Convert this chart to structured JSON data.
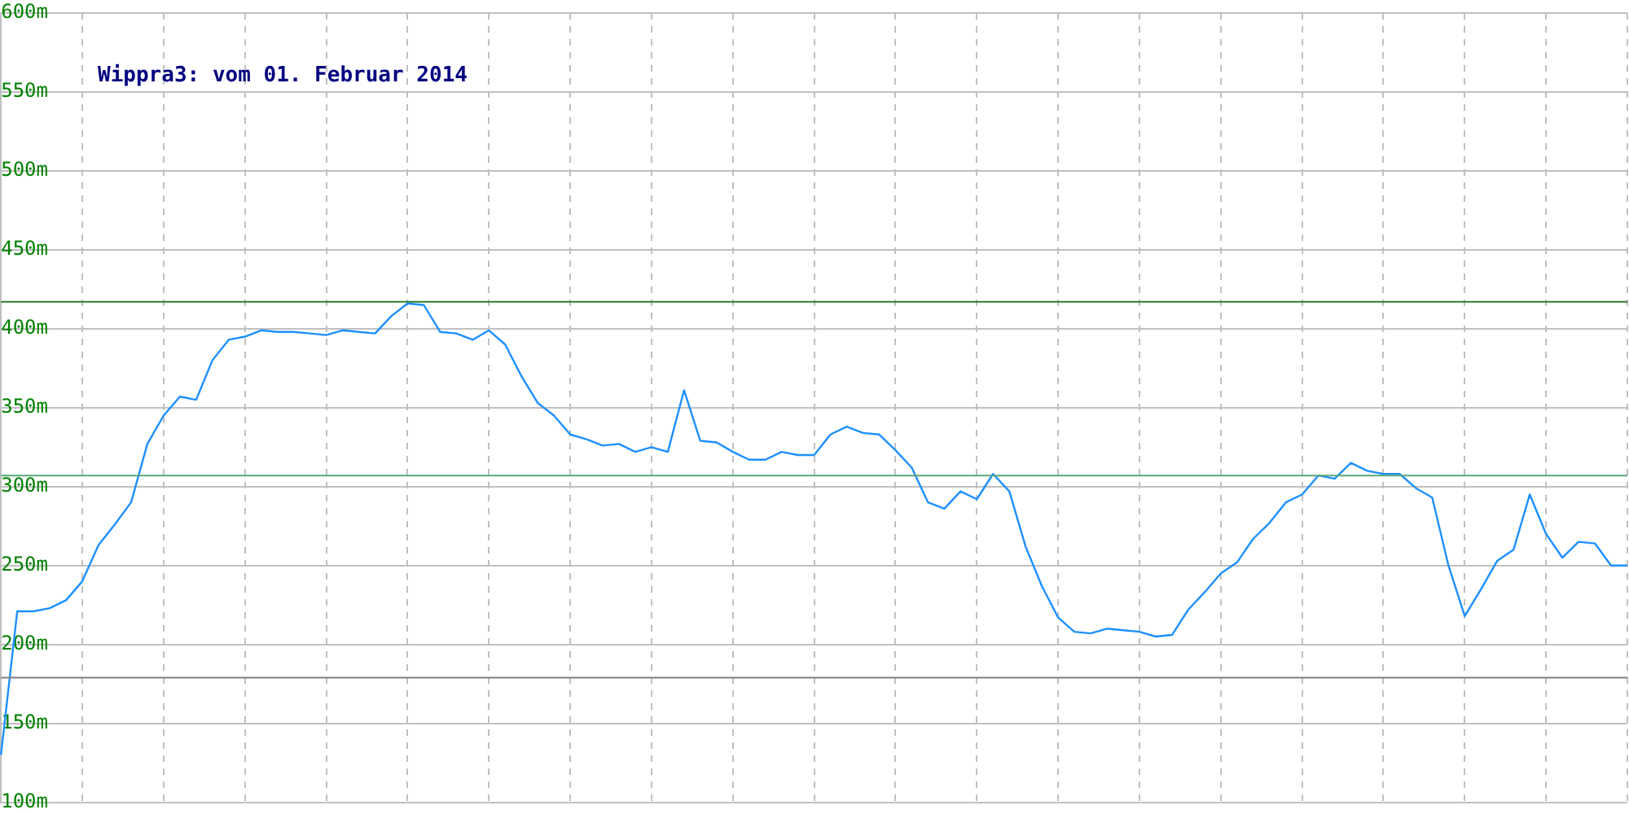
{
  "chart_data": {
    "type": "line",
    "title": "Wippra3: vom 01. Februar 2014",
    "categories": [
      null,
      null,
      null,
      null,
      null,
      null,
      null,
      null,
      null,
      null,
      null,
      null,
      null,
      null,
      null,
      null,
      null,
      null,
      null,
      null,
      null,
      null,
      null,
      null,
      null,
      null,
      null,
      null,
      null,
      null,
      null,
      null,
      null,
      null,
      null,
      null,
      null,
      null,
      null,
      null,
      null,
      null,
      null,
      null,
      null,
      null,
      null,
      null,
      null,
      null,
      null,
      null,
      null,
      null,
      null,
      null,
      null,
      null,
      null,
      null,
      null,
      null,
      null,
      null,
      null,
      null,
      null,
      null,
      null,
      null,
      null,
      null,
      null,
      null,
      null,
      null,
      null,
      null,
      null,
      null,
      null,
      null,
      null,
      null,
      null,
      null,
      null,
      null,
      null,
      null,
      null,
      null,
      null,
      null,
      null,
      null,
      null,
      null,
      null,
      null,
      null
    ],
    "series": [
      {
        "color": "#1e90ff",
        "values": [
          130,
          221,
          221,
          223,
          228,
          240,
          263,
          276,
          290,
          327,
          345,
          357,
          355,
          380,
          393,
          395,
          399,
          398,
          398,
          397,
          396,
          399,
          398,
          397,
          408,
          416,
          415,
          398,
          397,
          393,
          399,
          390,
          370,
          353,
          345,
          333,
          330,
          326,
          327,
          322,
          325,
          322,
          361,
          329,
          328,
          322,
          317,
          317,
          322,
          320,
          320,
          333,
          338,
          334,
          333,
          323,
          312,
          290,
          286,
          297,
          292,
          308,
          297,
          262,
          237,
          217,
          208,
          207,
          210,
          209,
          208,
          205,
          206,
          222,
          233,
          245,
          252,
          267,
          277,
          290,
          295,
          307,
          305,
          315,
          310,
          308,
          308,
          299,
          293,
          250,
          218,
          235,
          253,
          260,
          295,
          270,
          255,
          265,
          264,
          250,
          250
        ]
      }
    ],
    "ylim": [
      100,
      600
    ],
    "yticks": [
      {
        "value": 100,
        "label": "100m"
      },
      {
        "value": 150,
        "label": "150m"
      },
      {
        "value": 200,
        "label": "200m"
      },
      {
        "value": 250,
        "label": "250m"
      },
      {
        "value": 300,
        "label": "300m"
      },
      {
        "value": 350,
        "label": "350m"
      },
      {
        "value": 400,
        "label": "400m"
      },
      {
        "value": 450,
        "label": "450m"
      },
      {
        "value": 500,
        "label": "500m"
      },
      {
        "value": 550,
        "label": "550m"
      },
      {
        "value": 600,
        "label": "600m"
      }
    ],
    "tick_labels": "y",
    "grid": true,
    "legend": false,
    "marker": "none",
    "line_style": "solid",
    "ref_lines": [
      {
        "axis": "y",
        "value": 417,
        "color": "#2e7d2e"
      },
      {
        "axis": "y",
        "value": 307,
        "color": "#5aa87a"
      },
      {
        "axis": "y",
        "value": 179,
        "color": "#808080"
      }
    ]
  }
}
